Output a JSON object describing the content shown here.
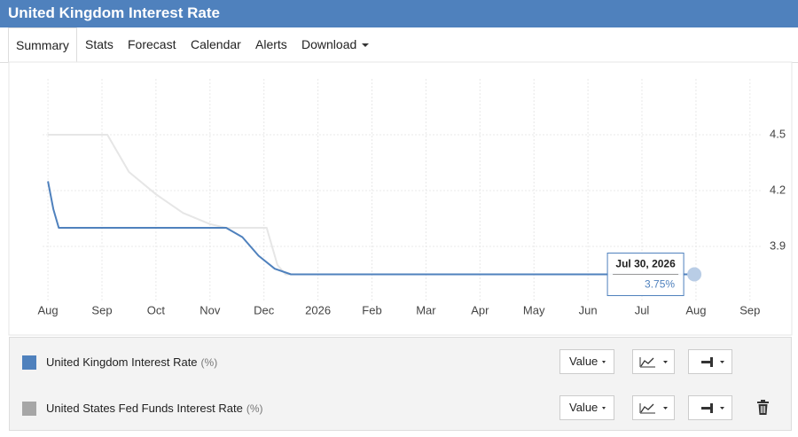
{
  "header": {
    "title": "United Kingdom Interest Rate"
  },
  "tabs": [
    "Summary",
    "Stats",
    "Forecast",
    "Calendar",
    "Alerts",
    "Download"
  ],
  "chart_data": {
    "type": "line",
    "xlim": [
      -0.1,
      13.2
    ],
    "xticks": [
      {
        "value": 0,
        "label": "Aug"
      },
      {
        "value": 1,
        "label": "Sep"
      },
      {
        "value": 2,
        "label": "Oct"
      },
      {
        "value": 3,
        "label": "Nov"
      },
      {
        "value": 4,
        "label": "Dec"
      },
      {
        "value": 5,
        "label": "2026"
      },
      {
        "value": 6,
        "label": "Feb"
      },
      {
        "value": 7,
        "label": "Mar"
      },
      {
        "value": 8,
        "label": "Apr"
      },
      {
        "value": 9,
        "label": "May"
      },
      {
        "value": 10,
        "label": "Jun"
      },
      {
        "value": 11,
        "label": "Jul"
      },
      {
        "value": 12,
        "label": "Aug"
      },
      {
        "value": 13,
        "label": "Sep"
      }
    ],
    "ylim": [
      3.6,
      4.8
    ],
    "yticks": [
      3.9,
      4.2,
      4.5
    ],
    "grid": true,
    "series": [
      {
        "name": "United States Fed Funds Interest Rate",
        "unit": "(%)",
        "color": "#e6e6e6",
        "legend_color": "#a6a6a6",
        "x": [
          0,
          1.1,
          1.3,
          1.5,
          2.0,
          2.5,
          3.0,
          3.3,
          4.05,
          4.15,
          4.25,
          4.4,
          4.6
        ],
        "values": [
          4.5,
          4.5,
          4.4,
          4.3,
          4.18,
          4.08,
          4.02,
          4.0,
          4.0,
          3.9,
          3.8,
          3.75,
          3.75
        ]
      },
      {
        "name": "United Kingdom Interest Rate",
        "unit": "(%)",
        "color": "#4f81bd",
        "legend_color": "#4f81bd",
        "x": [
          0,
          0.1,
          0.2,
          3.3,
          3.6,
          3.9,
          4.2,
          4.5,
          11.97
        ],
        "values": [
          4.25,
          4.1,
          4.0,
          4.0,
          3.95,
          3.85,
          3.78,
          3.75,
          3.75
        ]
      }
    ],
    "tooltip": {
      "title": "Jul 30, 2026",
      "value_label": "3.75%"
    }
  },
  "legend_rows": [
    {
      "name": "United Kingdom Interest Rate",
      "unit": "(%)",
      "button": "Value"
    },
    {
      "name": "United States Fed Funds Interest Rate",
      "unit": "(%)",
      "button": "Value"
    }
  ]
}
